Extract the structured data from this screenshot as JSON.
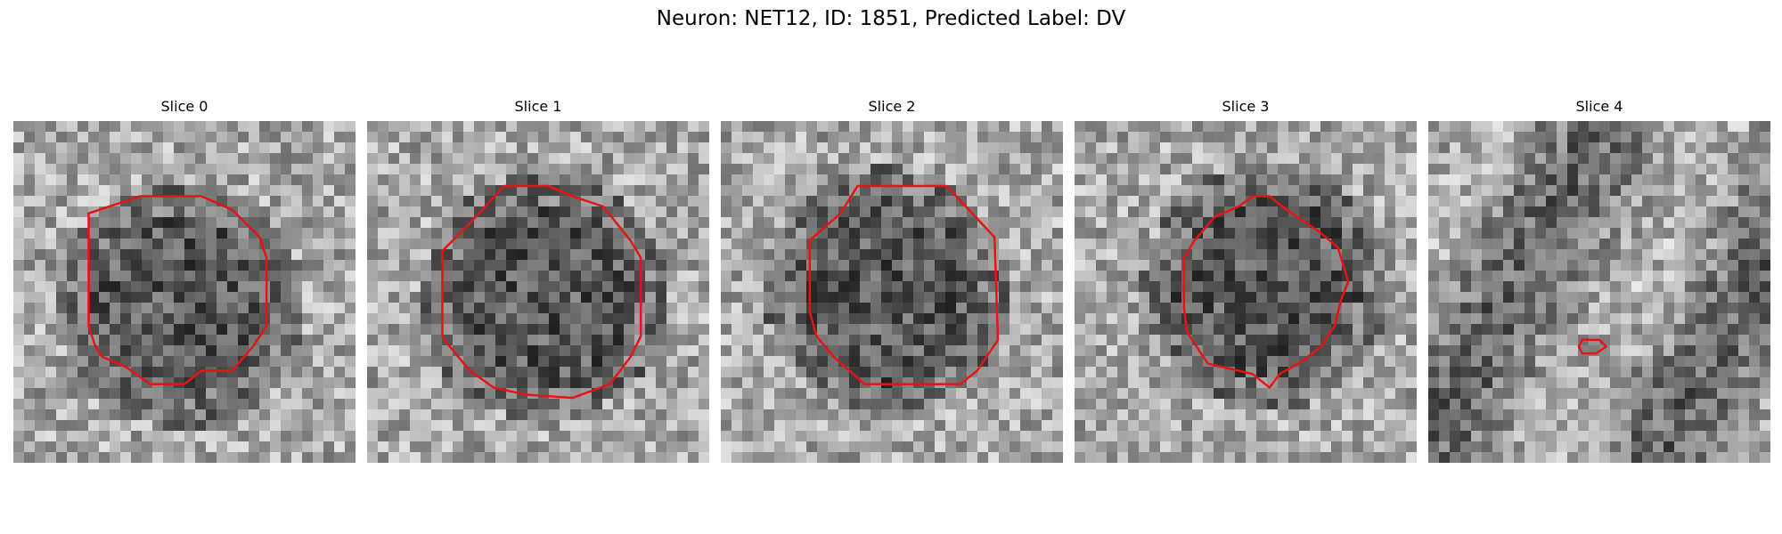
{
  "figure": {
    "title": "Neuron: NET12, ID: 1851, Predicted Label: DV"
  },
  "panels": [
    {
      "title": "Slice 0",
      "seed": 11,
      "contour": [
        [
          0.22,
          0.27
        ],
        [
          0.37,
          0.22
        ],
        [
          0.55,
          0.22
        ],
        [
          0.64,
          0.26
        ],
        [
          0.72,
          0.34
        ],
        [
          0.74,
          0.4
        ],
        [
          0.74,
          0.6
        ],
        [
          0.7,
          0.66
        ],
        [
          0.64,
          0.73
        ],
        [
          0.55,
          0.73
        ],
        [
          0.5,
          0.77
        ],
        [
          0.4,
          0.77
        ],
        [
          0.33,
          0.72
        ],
        [
          0.26,
          0.69
        ],
        [
          0.24,
          0.66
        ],
        [
          0.22,
          0.6
        ]
      ]
    },
    {
      "title": "Slice 1",
      "seed": 23,
      "contour": [
        [
          0.22,
          0.38
        ],
        [
          0.3,
          0.3
        ],
        [
          0.4,
          0.19
        ],
        [
          0.53,
          0.19
        ],
        [
          0.6,
          0.22
        ],
        [
          0.69,
          0.25
        ],
        [
          0.77,
          0.35
        ],
        [
          0.8,
          0.4
        ],
        [
          0.8,
          0.63
        ],
        [
          0.77,
          0.69
        ],
        [
          0.71,
          0.77
        ],
        [
          0.6,
          0.81
        ],
        [
          0.46,
          0.8
        ],
        [
          0.37,
          0.78
        ],
        [
          0.3,
          0.73
        ],
        [
          0.25,
          0.67
        ],
        [
          0.22,
          0.63
        ]
      ]
    },
    {
      "title": "Slice 2",
      "seed": 37,
      "contour": [
        [
          0.27,
          0.34
        ],
        [
          0.35,
          0.27
        ],
        [
          0.4,
          0.19
        ],
        [
          0.66,
          0.19
        ],
        [
          0.8,
          0.34
        ],
        [
          0.81,
          0.64
        ],
        [
          0.75,
          0.73
        ],
        [
          0.7,
          0.77
        ],
        [
          0.42,
          0.77
        ],
        [
          0.33,
          0.69
        ],
        [
          0.28,
          0.63
        ],
        [
          0.26,
          0.56
        ],
        [
          0.26,
          0.35
        ]
      ]
    },
    {
      "title": "Slice 3",
      "seed": 53,
      "contour": [
        [
          0.35,
          0.35
        ],
        [
          0.41,
          0.28
        ],
        [
          0.48,
          0.25
        ],
        [
          0.52,
          0.22
        ],
        [
          0.57,
          0.22
        ],
        [
          0.62,
          0.26
        ],
        [
          0.71,
          0.32
        ],
        [
          0.77,
          0.37
        ],
        [
          0.8,
          0.47
        ],
        [
          0.78,
          0.52
        ],
        [
          0.76,
          0.6
        ],
        [
          0.72,
          0.66
        ],
        [
          0.67,
          0.7
        ],
        [
          0.6,
          0.74
        ],
        [
          0.57,
          0.78
        ],
        [
          0.52,
          0.74
        ],
        [
          0.39,
          0.71
        ],
        [
          0.33,
          0.62
        ],
        [
          0.32,
          0.55
        ],
        [
          0.32,
          0.4
        ]
      ]
    },
    {
      "title": "Slice 4",
      "seed": 71,
      "contour": [
        [
          0.45,
          0.64
        ],
        [
          0.5,
          0.64
        ],
        [
          0.52,
          0.66
        ],
        [
          0.49,
          0.68
        ],
        [
          0.45,
          0.68
        ],
        [
          0.44,
          0.66
        ]
      ]
    }
  ],
  "colors": {
    "contour": "#e81313",
    "background": "#ffffff"
  }
}
